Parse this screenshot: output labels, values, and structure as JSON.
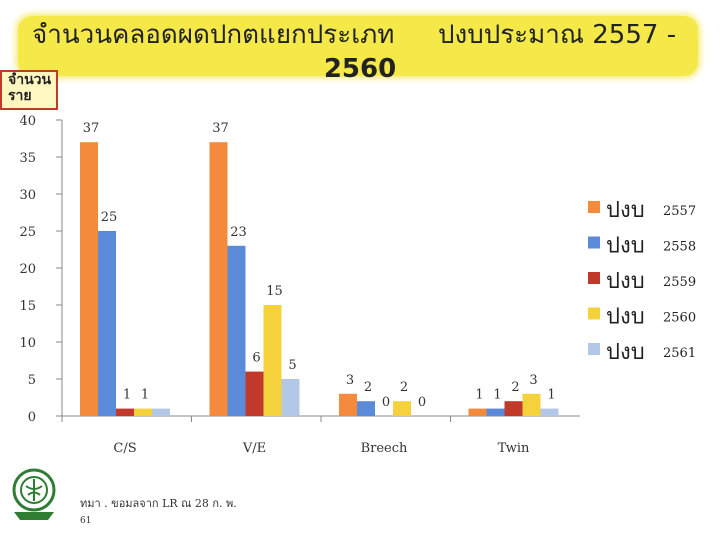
{
  "title": {
    "part1": "จำนวนคลอดผดปกตแยกประเภท",
    "part2": "ปงบประมาณ 2557 -",
    "part3": "2560"
  },
  "ylabel": "จำนวนราย",
  "footer": {
    "source": "ทมา  . ขอมลจาก  LR ณ 28 ก. พ.",
    "page": "61"
  },
  "colors": {
    "2557": "#f48b3c",
    "2558": "#5b8ad9",
    "2559": "#c0392b",
    "2560": "#f5d23c",
    "2561": "#b3c7e6",
    "title_bg": "#f5e94a"
  },
  "chart_data": {
    "type": "bar",
    "categories": [
      "C/S",
      "V/E",
      "Breech",
      "Twin"
    ],
    "series": [
      {
        "name": "ปงบ 2557",
        "values": [
          37,
          37,
          3,
          1
        ]
      },
      {
        "name": "ปงบ 2558",
        "values": [
          25,
          23,
          2,
          1
        ]
      },
      {
        "name": "ปงบ 2559",
        "values": [
          1,
          6,
          0,
          2
        ]
      },
      {
        "name": "ปงบ 2560",
        "values": [
          1,
          15,
          2,
          3
        ]
      },
      {
        "name": "ปงบ 2561",
        "values": [
          1,
          5,
          0,
          1
        ]
      }
    ],
    "data_labels": [
      [
        "37",
        "37",
        "3",
        "1"
      ],
      [
        "25",
        "23",
        "2",
        "1"
      ],
      [
        "1",
        "6",
        "0",
        "2"
      ],
      [
        "1",
        "15",
        "2",
        "3"
      ],
      [
        "",
        "5",
        "0",
        "1"
      ]
    ],
    "ylim": [
      0,
      40
    ],
    "yticks": [
      0,
      5,
      10,
      15,
      20,
      25,
      30,
      35,
      40
    ],
    "legend": {
      "position": "right",
      "entries": [
        {
          "label": "ปงบ",
          "year": "2557"
        },
        {
          "label": "ปงบ",
          "year": "2558"
        },
        {
          "label": "ปงบ",
          "year": "2559"
        },
        {
          "label": "ปงบ",
          "year": "2560"
        },
        {
          "label": "ปงบ",
          "year": "2561"
        }
      ]
    }
  }
}
